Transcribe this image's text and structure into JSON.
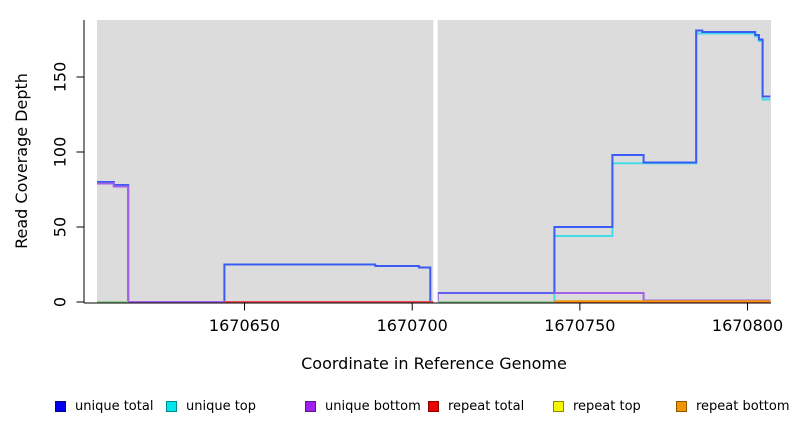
{
  "chart_data": {
    "type": "line",
    "title": "",
    "xlabel": "Coordinate in Reference Genome",
    "ylabel": "Read Coverage Depth",
    "x_ticks": [
      1670650,
      1670700,
      1670750,
      1670800
    ],
    "y_ticks": [
      0,
      50,
      100,
      150
    ],
    "xlim": [
      1670606,
      1670807
    ],
    "ylim": [
      0,
      185
    ],
    "grid": false,
    "panel_background": "#dcdcdc",
    "gap": {
      "x_start": 1670706.3,
      "x_end": 1670707.6,
      "color": "#ffffff"
    },
    "series": [
      {
        "name": "unique top",
        "line_color": "#40dce8",
        "polylines": [
          [
            [
              1670606,
              0
            ],
            [
              1670706.3,
              0
            ]
          ],
          [
            [
              1670707.6,
              0
            ],
            [
              1670742.4,
              0
            ],
            [
              1670742.4,
              44
            ],
            [
              1670759.7,
              44
            ],
            [
              1670759.7,
              92.5
            ],
            [
              1670784.7,
              92.5
            ],
            [
              1670784.7,
              179
            ],
            [
              1670802.3,
              179
            ],
            [
              1670802.3,
              177
            ],
            [
              1670803.4,
              177
            ],
            [
              1670803.4,
              174
            ],
            [
              1670804.5,
              174
            ],
            [
              1670804.5,
              135
            ],
            [
              1670806.8,
              135
            ]
          ]
        ]
      },
      {
        "name": "unique total",
        "line_color": "#3a5cf5",
        "polylines": [
          [
            [
              1670606,
              80
            ],
            [
              1670611,
              80
            ],
            [
              1670611,
              78
            ],
            [
              1670615.3,
              78
            ],
            [
              1670615.3,
              0
            ],
            [
              1670644,
              0
            ],
            [
              1670644,
              25
            ],
            [
              1670689,
              25
            ],
            [
              1670689,
              24
            ],
            [
              1670702,
              24
            ],
            [
              1670702,
              23
            ],
            [
              1670705.4,
              23
            ],
            [
              1670705.4,
              0
            ],
            [
              1670706.3,
              0
            ]
          ],
          [
            [
              1670707.6,
              0.5
            ],
            [
              1670707.6,
              6
            ],
            [
              1670742.4,
              6
            ],
            [
              1670742.4,
              50
            ],
            [
              1670759.7,
              50
            ],
            [
              1670759.7,
              98
            ],
            [
              1670769,
              98
            ],
            [
              1670769,
              93
            ],
            [
              1670784.7,
              93
            ],
            [
              1670784.7,
              181
            ],
            [
              1670786.5,
              181
            ],
            [
              1670786.5,
              180
            ],
            [
              1670802.3,
              180
            ],
            [
              1670802.3,
              178
            ],
            [
              1670803.4,
              178
            ],
            [
              1670803.4,
              175
            ],
            [
              1670804.5,
              175
            ],
            [
              1670804.5,
              137
            ],
            [
              1670806.8,
              137
            ]
          ]
        ]
      },
      {
        "name": "unique bottom",
        "line_color": "#a361e8",
        "polylines": [
          [
            [
              1670606,
              79
            ],
            [
              1670611,
              79
            ],
            [
              1670611,
              77
            ],
            [
              1670615.3,
              77
            ],
            [
              1670615.3,
              0
            ],
            [
              1670706.3,
              0
            ]
          ],
          [
            [
              1670707.6,
              0.5
            ],
            [
              1670707.6,
              6
            ],
            [
              1670769,
              6
            ],
            [
              1670769,
              1
            ],
            [
              1670806.8,
              1
            ]
          ]
        ]
      },
      {
        "name": "repeat total",
        "line_color": "#ec4d55",
        "polylines": [
          [
            [
              1670644,
              0
            ],
            [
              1670706.3,
              0
            ]
          ],
          [
            [
              1670742.4,
              0
            ],
            [
              1670806.8,
              0
            ]
          ]
        ]
      },
      {
        "name": "repeat top",
        "line_color": "#8fce8f",
        "polylines": [
          [
            [
              1670606,
              0
            ],
            [
              1670615.3,
              0
            ]
          ],
          [
            [
              1670707.6,
              0
            ],
            [
              1670742.4,
              0
            ]
          ]
        ]
      },
      {
        "name": "repeat bottom",
        "line_color": "#f5960a",
        "polylines": [
          [
            [
              1670742.4,
              0
            ],
            [
              1670806.8,
              0
            ]
          ]
        ]
      }
    ],
    "overlay": {
      "series": "unique total",
      "polyline": [
        [
          1670707.6,
          6
        ],
        [
          1670742.4,
          6
        ]
      ],
      "width": 1.2
    }
  },
  "legend": {
    "items": [
      {
        "label": "unique total",
        "fill": "#0000ee",
        "border": "#00008b"
      },
      {
        "label": "unique top",
        "fill": "#00e5ee",
        "border": "#008b8b"
      },
      {
        "label": "unique bottom",
        "fill": "#a020f0",
        "border": "#551a8b"
      },
      {
        "label": "repeat total",
        "fill": "#ee0000",
        "border": "#8b0000"
      },
      {
        "label": "repeat top",
        "fill": "#f5f500",
        "border": "#8b8b00"
      },
      {
        "label": "repeat bottom",
        "fill": "#f59300",
        "border": "#8b5a00"
      }
    ]
  }
}
